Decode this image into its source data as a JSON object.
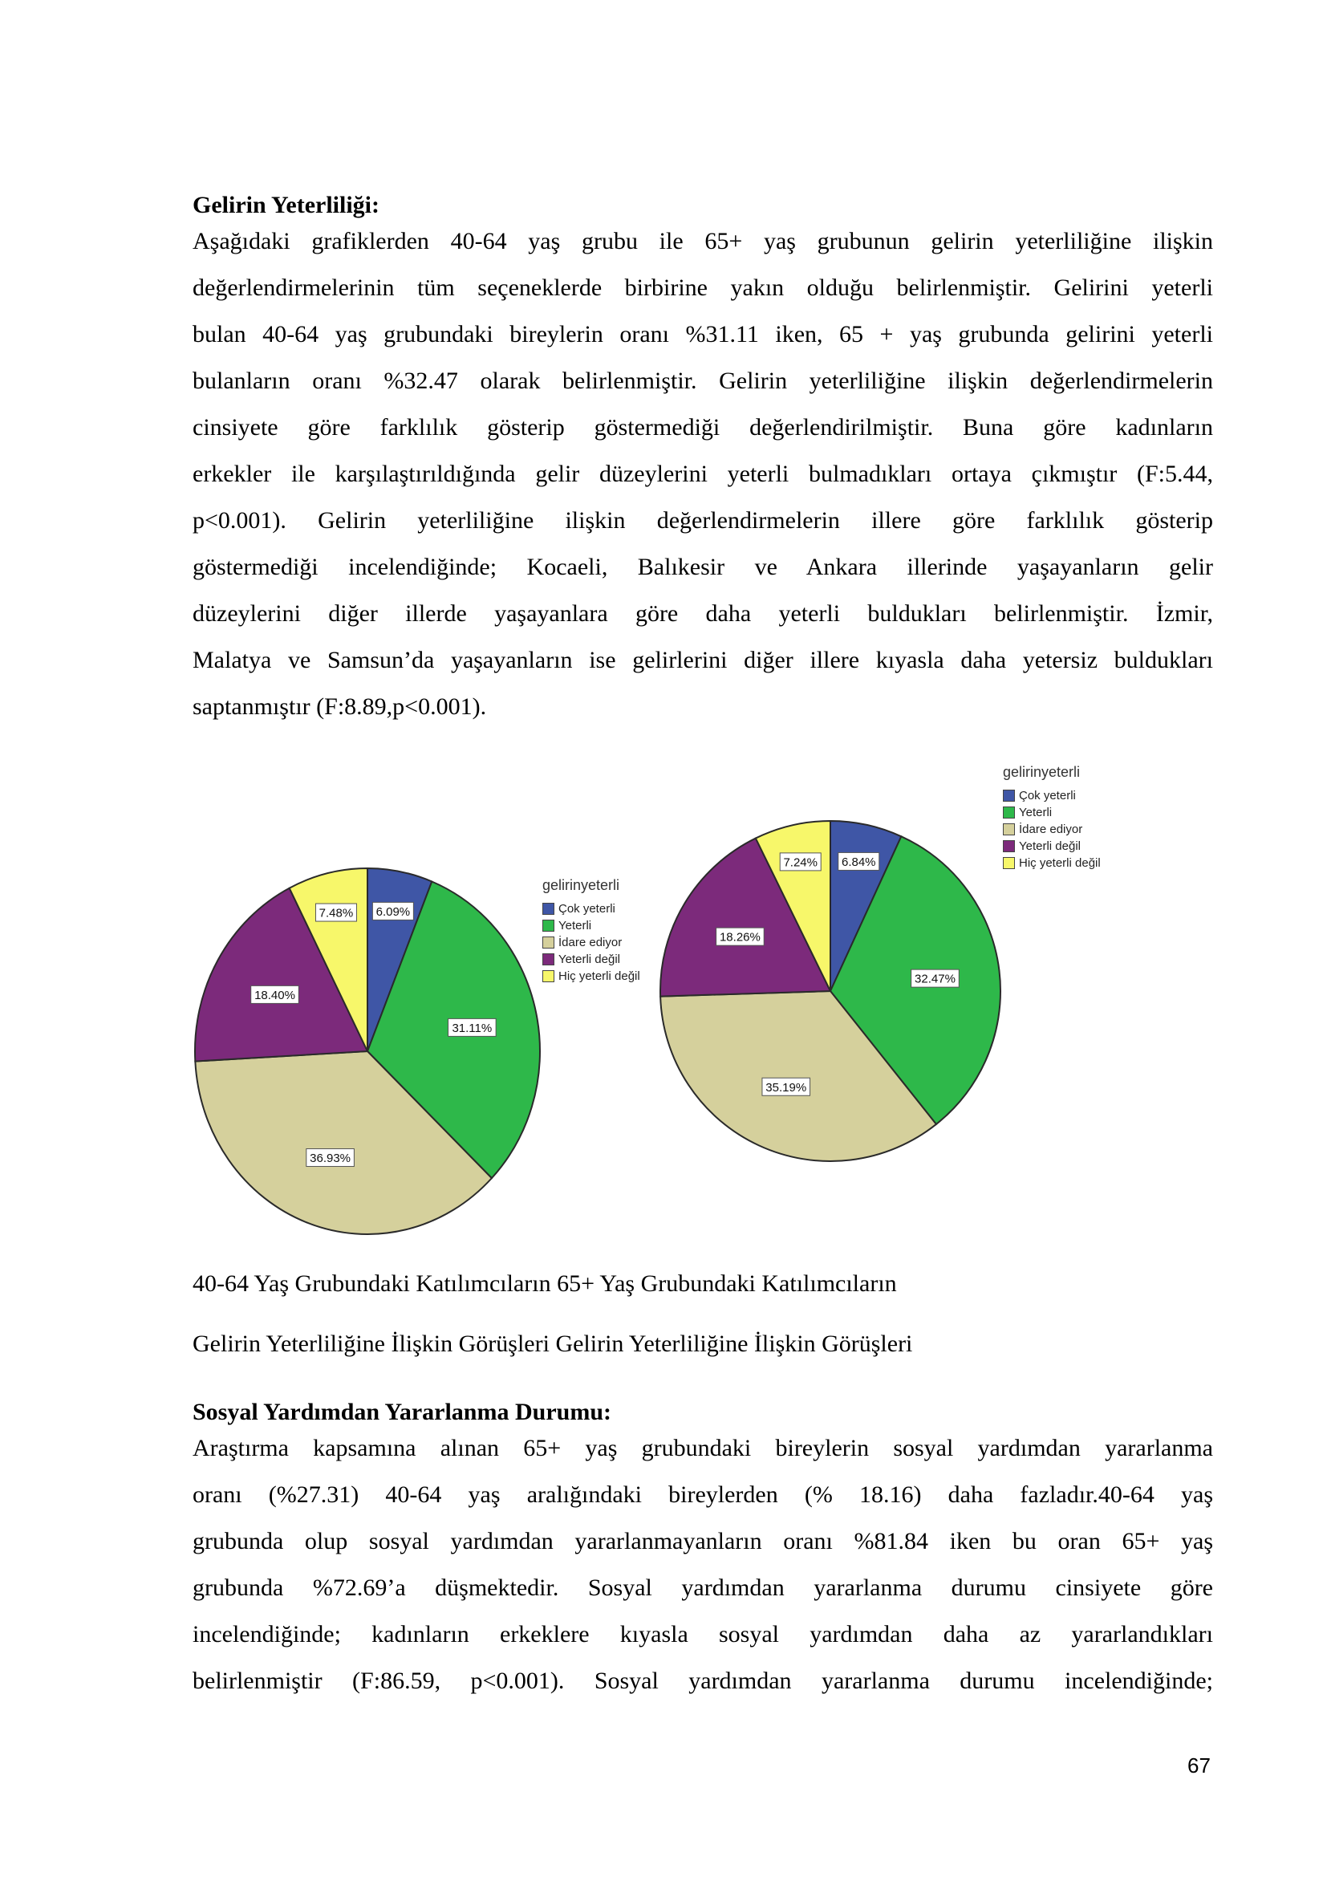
{
  "section1": {
    "heading": "Gelirin Yeterliliği:",
    "lines": [
      "Aşağıdaki grafiklerden 40-64 yaş grubu ile 65+ yaş grubunun gelirin yeterliliğine ilişkin",
      "değerlendirmelerinin tüm seçeneklerde birbirine yakın olduğu belirlenmiştir. Gelirini yeterli",
      "bulan 40-64 yaş grubundaki bireylerin oranı %31.11 iken, 65 + yaş grubunda gelirini yeterli",
      "bulanların oranı %32.47 olarak belirlenmiştir. Gelirin yeterliliğine ilişkin değerlendirmelerin",
      "cinsiyete göre farklılık gösterip göstermediği değerlendirilmiştir. Buna göre kadınların",
      "erkekler ile karşılaştırıldığında gelir düzeylerini yeterli bulmadıkları ortaya çıkmıştır (F:5.44,",
      "p<0.001). Gelirin yeterliliğine ilişkin değerlendirmelerin illere göre farklılık gösterip",
      "göstermediği incelendiğinde; Kocaeli, Balıkesir ve Ankara illerinde yaşayanların gelir",
      "düzeylerini diğer illerde yaşayanlara göre daha yeterli buldukları belirlenmiştir. İzmir,",
      "Malatya ve Samsun’da yaşayanların ise gelirlerini diğer illere kıyasla daha yetersiz buldukları",
      "saptanmıştır (F:8.89,p<0.001)."
    ]
  },
  "chart_data": [
    {
      "type": "pie",
      "legend_title": "gelirinyeterli",
      "categories": [
        "Çok yeterli",
        "Yeterli",
        "İdare ediyor",
        "Yeterli değil",
        "Hiç yeterli değil"
      ],
      "values": [
        6.09,
        31.11,
        36.93,
        18.4,
        7.48
      ],
      "labels": [
        "6.09%",
        "31.11%",
        "36.93%",
        "18.40%",
        "7.48%"
      ],
      "colors": [
        "#3f56a6",
        "#2eb84a",
        "#d5d09c",
        "#7c2a7b",
        "#f7f76a"
      ],
      "legend": "right"
    },
    {
      "type": "pie",
      "legend_title": "gelirinyeterli",
      "categories": [
        "Çok yeterli",
        "Yeterli",
        "İdare ediyor",
        "Yeterli değil",
        "Hiç yeterli değil"
      ],
      "values": [
        6.84,
        32.47,
        35.19,
        18.26,
        7.24
      ],
      "labels": [
        "6.84%",
        "32.47%",
        "35.19%",
        "18.26%",
        "7.24%"
      ],
      "colors": [
        "#3f56a6",
        "#2eb84a",
        "#d5d09c",
        "#7c2a7b",
        "#f7f76a"
      ],
      "legend": "top-right"
    }
  ],
  "captions": {
    "line1": "40-64 Yaş Grubundaki Katılımcıların 65+ Yaş Grubundaki Katılımcıların",
    "line2": "Gelirin Yeterliliğine İlişkin Görüşleri Gelirin Yeterliliğine İlişkin Görüşleri"
  },
  "section2": {
    "heading": "Sosyal Yardımdan Yararlanma Durumu:",
    "lines": [
      "Araştırma kapsamına alınan 65+ yaş grubundaki bireylerin sosyal yardımdan yararlanma",
      "oranı (%27.31)  40-64 yaş aralığındaki bireylerden (% 18.16) daha fazladır.40-64 yaş",
      "grubunda olup sosyal yardımdan yararlanmayanların oranı %81.84 iken bu oran 65+ yaş",
      "grubunda %72.69’a düşmektedir. Sosyal yardımdan yararlanma durumu cinsiyete göre",
      "incelendiğinde; kadınların erkeklere kıyasla sosyal yardımdan daha az yararlandıkları",
      "belirlenmiştir (F:86.59, p<0.001). Sosyal yardımdan yararlanma durumu incelendiğinde;"
    ]
  },
  "page_number": "67"
}
